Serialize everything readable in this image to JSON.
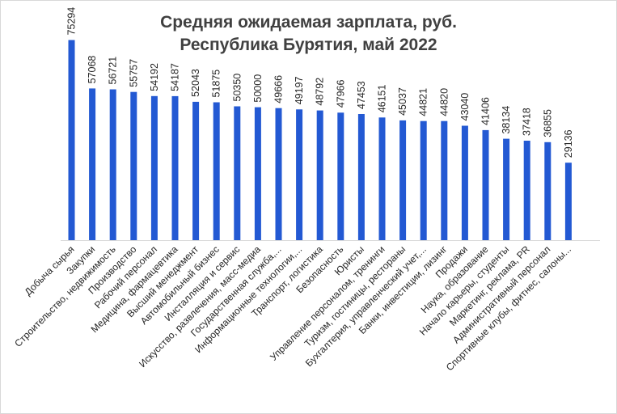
{
  "chart_data": {
    "type": "bar",
    "title": "Средняя ожидаемая зарплата, руб.",
    "subtitle": "Республика Бурятия, май 2022",
    "bar_color": "#2359d3",
    "ylim": [
      0,
      80000
    ],
    "categories": [
      "Добыча сырья",
      "Закупки",
      "Строительство, недвижимость",
      "Производство",
      "Рабочий персонал",
      "Медицина, фармацевтика",
      "Высший менеджмент",
      "Автомобильный бизнес",
      "Инсталляция и сервис",
      "Искусство, развлечения, масс-медиа",
      "Государственная служба,...",
      "Информационные технологии,...",
      "Транспорт, логистика",
      "Безопасность",
      "Юристы",
      "Управление персоналом, тренинги",
      "Туризм, гостиницы, рестораны",
      "Бухгалтерия, управленческий учет,...",
      "Банки, инвестиции, лизинг",
      "Продажи",
      "Наука, образование",
      "Начало карьеры, студенты",
      "Маркетинг, реклама, PR",
      "Административный персонал",
      "Спортивные клубы, фитнес, салоны..."
    ],
    "values": [
      75294,
      57068,
      56721,
      55757,
      54192,
      54187,
      52043,
      51875,
      50350,
      50000,
      49666,
      49197,
      48792,
      47966,
      47453,
      46151,
      45037,
      44821,
      44820,
      43040,
      41406,
      38134,
      37418,
      36855,
      29136
    ]
  }
}
